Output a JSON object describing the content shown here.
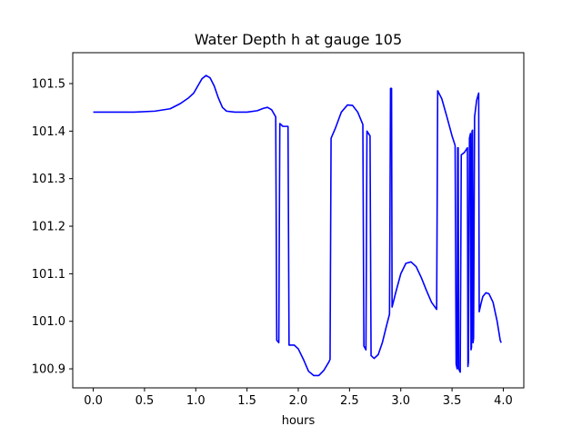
{
  "chart_data": {
    "type": "line",
    "title": "Water Depth h at gauge 105",
    "xlabel": "hours",
    "ylabel": "",
    "xlim": [
      -0.2,
      4.2
    ],
    "ylim": [
      100.86,
      101.565
    ],
    "grid": false,
    "legend": "none",
    "xticks": [
      0.0,
      0.5,
      1.0,
      1.5,
      2.0,
      2.5,
      3.0,
      3.5,
      4.0
    ],
    "xtick_labels": [
      "0.0",
      "0.5",
      "1.0",
      "1.5",
      "2.0",
      "2.5",
      "3.0",
      "3.5",
      "4.0"
    ],
    "yticks": [
      100.9,
      101.0,
      101.1,
      101.2,
      101.3,
      101.4,
      101.5
    ],
    "ytick_labels": [
      "100.9",
      "101.0",
      "101.1",
      "101.2",
      "101.3",
      "101.4",
      "101.5"
    ],
    "series": [
      {
        "color": "#0000ff",
        "points": [
          [
            0.0,
            101.44
          ],
          [
            0.2,
            101.44
          ],
          [
            0.4,
            101.44
          ],
          [
            0.6,
            101.442
          ],
          [
            0.75,
            101.447
          ],
          [
            0.85,
            101.458
          ],
          [
            0.93,
            101.47
          ],
          [
            0.98,
            101.48
          ],
          [
            1.02,
            101.495
          ],
          [
            1.06,
            101.51
          ],
          [
            1.1,
            101.517
          ],
          [
            1.14,
            101.512
          ],
          [
            1.18,
            101.495
          ],
          [
            1.22,
            101.47
          ],
          [
            1.26,
            101.45
          ],
          [
            1.3,
            101.442
          ],
          [
            1.38,
            101.44
          ],
          [
            1.5,
            101.44
          ],
          [
            1.6,
            101.443
          ],
          [
            1.66,
            101.448
          ],
          [
            1.7,
            101.45
          ],
          [
            1.74,
            101.445
          ],
          [
            1.78,
            101.43
          ],
          [
            1.79,
            100.96
          ],
          [
            1.81,
            100.955
          ],
          [
            1.82,
            101.416
          ],
          [
            1.85,
            101.41
          ],
          [
            1.9,
            101.41
          ],
          [
            1.91,
            100.95
          ],
          [
            1.96,
            100.95
          ],
          [
            2.0,
            100.942
          ],
          [
            2.05,
            100.92
          ],
          [
            2.1,
            100.895
          ],
          [
            2.15,
            100.886
          ],
          [
            2.2,
            100.886
          ],
          [
            2.25,
            100.897
          ],
          [
            2.3,
            100.915
          ],
          [
            2.31,
            100.92
          ],
          [
            2.32,
            101.385
          ],
          [
            2.36,
            101.405
          ],
          [
            2.42,
            101.44
          ],
          [
            2.48,
            101.455
          ],
          [
            2.53,
            101.454
          ],
          [
            2.58,
            101.44
          ],
          [
            2.63,
            101.414
          ],
          [
            2.64,
            100.948
          ],
          [
            2.66,
            100.94
          ],
          [
            2.67,
            101.4
          ],
          [
            2.7,
            101.39
          ],
          [
            2.71,
            100.928
          ],
          [
            2.74,
            100.922
          ],
          [
            2.78,
            100.93
          ],
          [
            2.82,
            100.955
          ],
          [
            2.86,
            100.99
          ],
          [
            2.89,
            101.015
          ],
          [
            2.9,
            101.49
          ],
          [
            2.91,
            101.49
          ],
          [
            2.915,
            101.03
          ],
          [
            2.95,
            101.06
          ],
          [
            3.0,
            101.1
          ],
          [
            3.05,
            101.122
          ],
          [
            3.1,
            101.125
          ],
          [
            3.15,
            101.115
          ],
          [
            3.2,
            101.092
          ],
          [
            3.25,
            101.065
          ],
          [
            3.3,
            101.04
          ],
          [
            3.35,
            101.025
          ],
          [
            3.36,
            101.485
          ],
          [
            3.4,
            101.468
          ],
          [
            3.45,
            101.43
          ],
          [
            3.5,
            101.39
          ],
          [
            3.53,
            101.37
          ],
          [
            3.54,
            100.91
          ],
          [
            3.55,
            100.9
          ],
          [
            3.555,
            101.365
          ],
          [
            3.56,
            101.365
          ],
          [
            3.565,
            100.9
          ],
          [
            3.58,
            100.893
          ],
          [
            3.59,
            101.35
          ],
          [
            3.62,
            101.355
          ],
          [
            3.65,
            101.365
          ],
          [
            3.655,
            100.905
          ],
          [
            3.66,
            100.915
          ],
          [
            3.67,
            101.385
          ],
          [
            3.68,
            101.395
          ],
          [
            3.685,
            100.94
          ],
          [
            3.69,
            100.945
          ],
          [
            3.695,
            101.4
          ],
          [
            3.7,
            101.402
          ],
          [
            3.705,
            100.955
          ],
          [
            3.71,
            100.965
          ],
          [
            3.72,
            101.43
          ],
          [
            3.74,
            101.465
          ],
          [
            3.76,
            101.48
          ],
          [
            3.765,
            101.02
          ],
          [
            3.78,
            101.035
          ],
          [
            3.8,
            101.052
          ],
          [
            3.83,
            101.06
          ],
          [
            3.86,
            101.058
          ],
          [
            3.9,
            101.04
          ],
          [
            3.94,
            101.0
          ],
          [
            3.97,
            100.96
          ],
          [
            3.98,
            100.955
          ]
        ]
      }
    ]
  }
}
